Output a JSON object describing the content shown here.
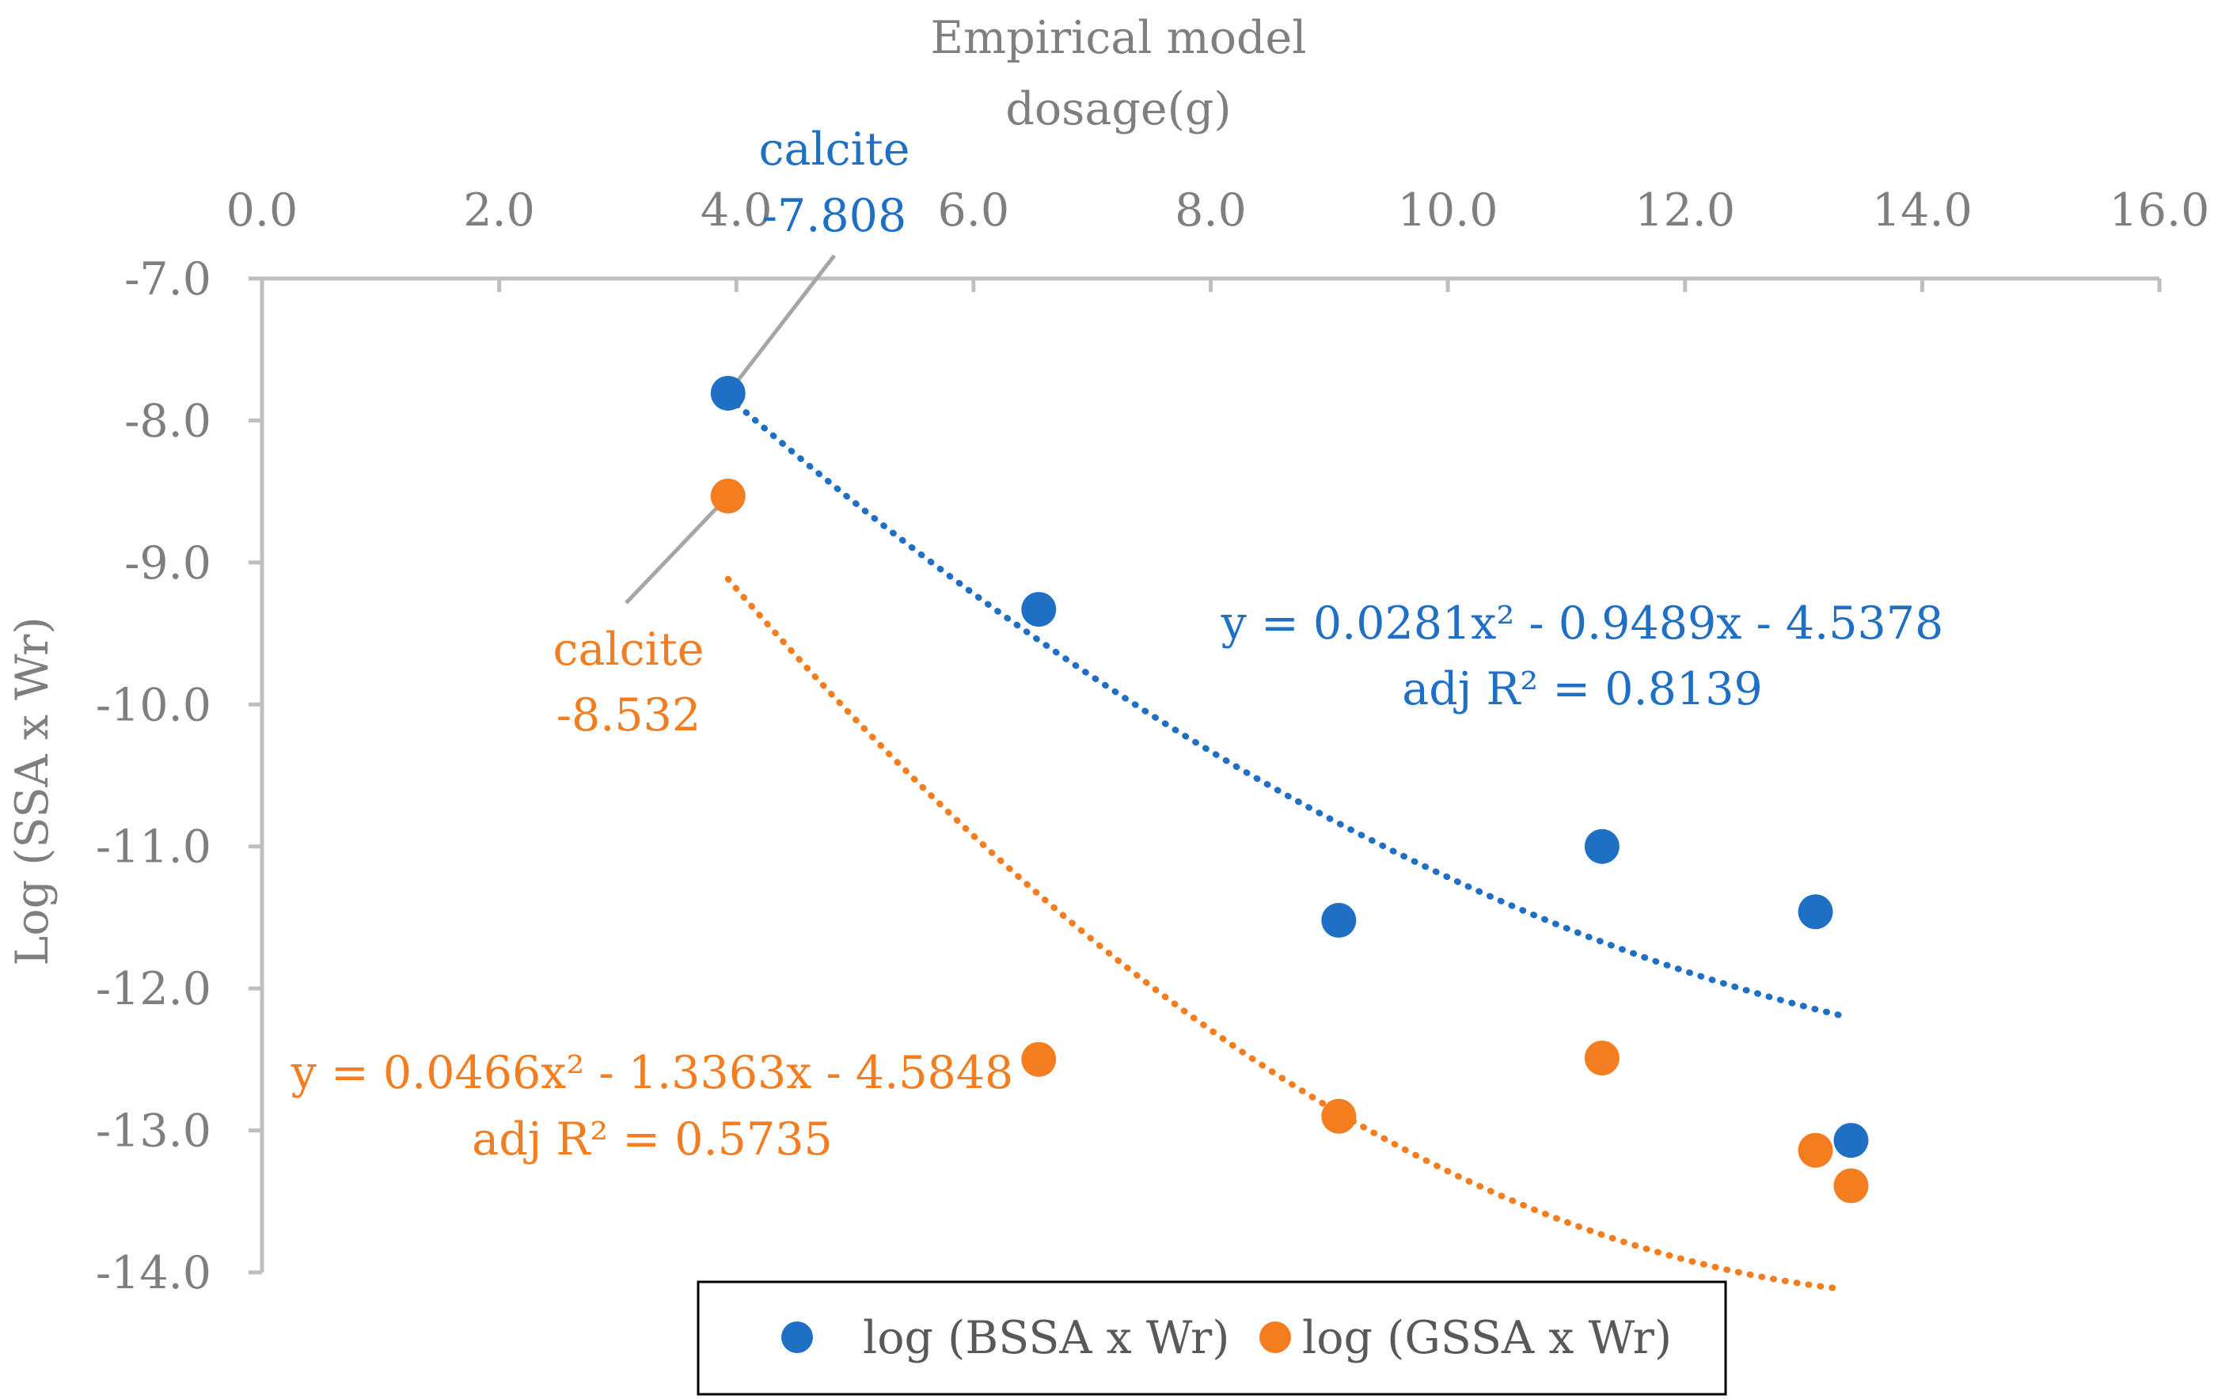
{
  "chart_data": {
    "type": "scatter",
    "title": "",
    "xlabel_lines": [
      "Empirical model",
      "dosage(g)"
    ],
    "ylabel": "Log (SSA x Wr)",
    "x_axis_position": "top",
    "xlim": [
      0.0,
      16.0
    ],
    "ylim": [
      -14.0,
      -7.0
    ],
    "x_ticks": [
      0,
      2,
      4,
      6,
      8,
      10,
      12,
      14,
      16
    ],
    "x_tick_labels": [
      "0.0",
      "2.0",
      "4.0",
      "6.0",
      "8.0",
      "10.0",
      "12.0",
      "14.0",
      "16.0"
    ],
    "y_ticks": [
      -7,
      -8,
      -9,
      -10,
      -11,
      -12,
      -13,
      -14
    ],
    "y_tick_labels": [
      "-7.0",
      "-8.0",
      "-9.0",
      "-10.0",
      "-11.0",
      "-12.0",
      "-13.0",
      "-14.0"
    ],
    "grid": false,
    "legend_position": "bottom",
    "series": [
      {
        "name": "log (BSSA x Wr)",
        "color": "#1f6fc5",
        "x": [
          3.93,
          6.55,
          9.08,
          11.3,
          13.1,
          13.4
        ],
        "y": [
          -7.808,
          -9.33,
          -11.52,
          -11.0,
          -11.46,
          -13.07
        ],
        "trendline": {
          "type": "polynomial-2",
          "coefficients": [
            0.0281,
            -0.9489,
            -4.5378
          ],
          "x_range": [
            3.93,
            13.3
          ],
          "equation": "y = 0.0281x² - 0.9489x - 4.5378",
          "r2_label": "adj R² = 0.8139"
        },
        "point_label": {
          "name": "calcite",
          "value": "-7.808"
        }
      },
      {
        "name": "log (GSSA x Wr)",
        "color": "#f47d20",
        "x": [
          3.93,
          6.55,
          9.08,
          11.3,
          13.1,
          13.4
        ],
        "y": [
          -8.532,
          -12.5,
          -12.9,
          -12.49,
          -13.14,
          -13.39
        ],
        "trendline": {
          "type": "polynomial-2",
          "coefficients": [
            0.0466,
            -1.3363,
            -4.5848
          ],
          "x_range": [
            3.93,
            13.3
          ],
          "equation": "y = 0.0466x² - 1.3363x - 4.5848",
          "r2_label": "adj R² = 0.5735"
        },
        "point_label": {
          "name": "calcite",
          "value": "-8.532"
        }
      }
    ]
  }
}
